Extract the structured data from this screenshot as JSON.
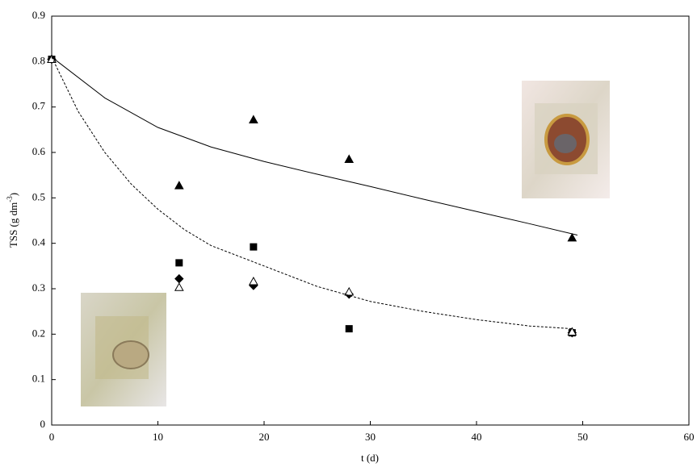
{
  "chart_data": {
    "type": "scatter",
    "x_label": "t (d)",
    "y_label": [
      "TSS (g dm",
      "-3",
      ")"
    ],
    "xlim": [
      0,
      60
    ],
    "xticks": [
      0,
      10,
      20,
      30,
      40,
      50,
      60
    ],
    "ylim": [
      0,
      0.9
    ],
    "yticks": [
      0,
      0.1,
      0.2,
      0.3,
      0.4,
      0.5,
      0.6,
      0.7,
      0.8,
      0.9
    ],
    "grid": false,
    "series": [
      {
        "marker": "triangle",
        "filled": true,
        "color": "#000000",
        "x": [
          0,
          12,
          19,
          28,
          49
        ],
        "values": [
          0.805,
          0.527,
          0.672,
          0.585,
          0.412
        ]
      },
      {
        "marker": "square",
        "filled": true,
        "color": "#000000",
        "x": [
          0,
          12,
          19,
          28,
          49
        ],
        "values": [
          0.805,
          0.357,
          0.392,
          0.212,
          0.203
        ]
      },
      {
        "marker": "diamond",
        "filled": true,
        "color": "#000000",
        "x": [
          0,
          12,
          19,
          28,
          49
        ],
        "values": [
          0.805,
          0.322,
          0.307,
          0.288,
          0.203
        ]
      },
      {
        "marker": "triangle",
        "filled": false,
        "color": "#000000",
        "x": [
          0,
          12,
          19,
          28,
          49
        ],
        "values": [
          0.805,
          0.303,
          0.316,
          0.293,
          0.205
        ]
      },
      {
        "marker": "line",
        "style": "solid",
        "color": "#000000",
        "x": [
          0,
          5,
          10,
          15,
          20,
          25,
          30,
          35,
          40,
          45,
          49.5
        ],
        "values": [
          0.81,
          0.72,
          0.655,
          0.612,
          0.58,
          0.552,
          0.525,
          0.497,
          0.47,
          0.443,
          0.418
        ]
      },
      {
        "marker": "line",
        "style": "dashed",
        "color": "#000000",
        "x": [
          0,
          2.5,
          5,
          7.5,
          10,
          12.5,
          15,
          20,
          25,
          30,
          35,
          40,
          45,
          49
        ],
        "values": [
          0.81,
          0.69,
          0.6,
          0.53,
          0.475,
          0.43,
          0.395,
          0.35,
          0.305,
          0.272,
          0.25,
          0.232,
          0.218,
          0.212
        ]
      }
    ]
  }
}
